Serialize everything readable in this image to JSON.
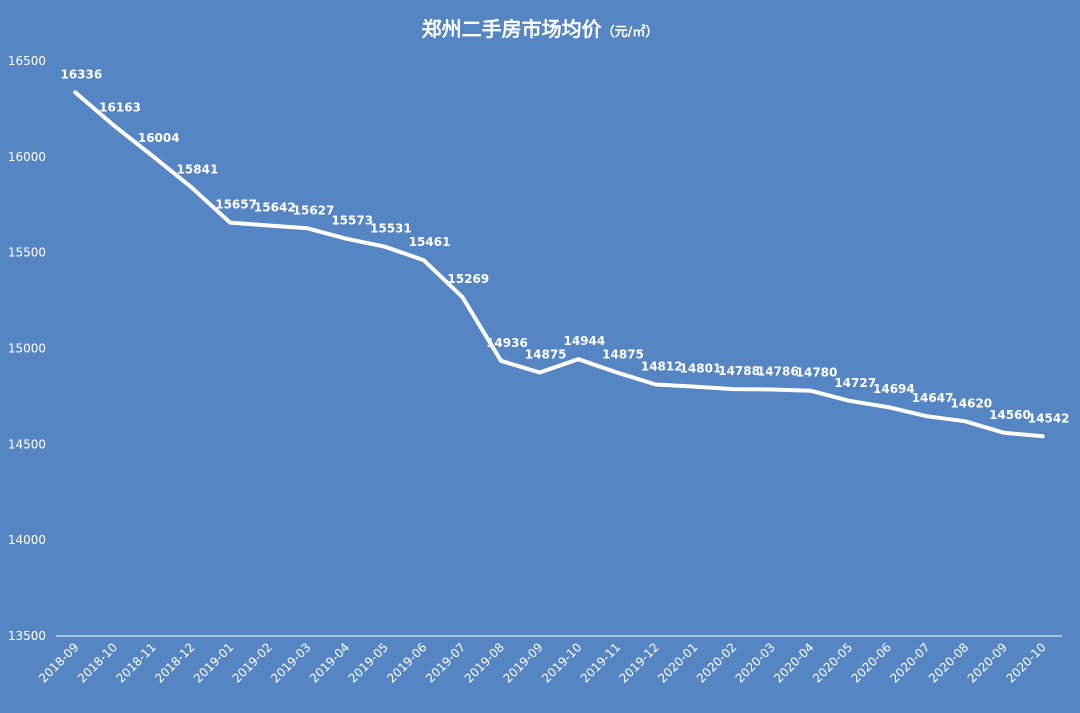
{
  "colors": {
    "background": "#5585c2",
    "line": "#ffffff",
    "text": "#ffffff"
  },
  "chart_data": {
    "type": "line",
    "title": "郑州二手房市场均价",
    "title_unit": "（元/㎡）",
    "xlabel": "",
    "ylabel": "",
    "ylim": [
      13500,
      16500
    ],
    "yticks": [
      13500,
      14000,
      14500,
      15000,
      15500,
      16000,
      16500
    ],
    "grid": "vertical drop lines",
    "legend": "none",
    "categories": [
      "2018-09",
      "2018-10",
      "2018-11",
      "2018-12",
      "2019-01",
      "2019-02",
      "2019-03",
      "2019-04",
      "2019-05",
      "2019-06",
      "2019-07",
      "2019-08",
      "2019-09",
      "2019-10",
      "2019-11",
      "2019-12",
      "2020-01",
      "2020-02",
      "2020-03",
      "2020-04",
      "2020-05",
      "2020-06",
      "2020-07",
      "2020-08",
      "2020-09",
      "2020-10"
    ],
    "values": [
      16336,
      16163,
      16004,
      15841,
      15657,
      15642,
      15627,
      15573,
      15531,
      15461,
      15269,
      14936,
      14875,
      14944,
      14875,
      14812,
      14801,
      14788,
      14786,
      14780,
      14727,
      14694,
      14647,
      14620,
      14560,
      14542
    ]
  }
}
